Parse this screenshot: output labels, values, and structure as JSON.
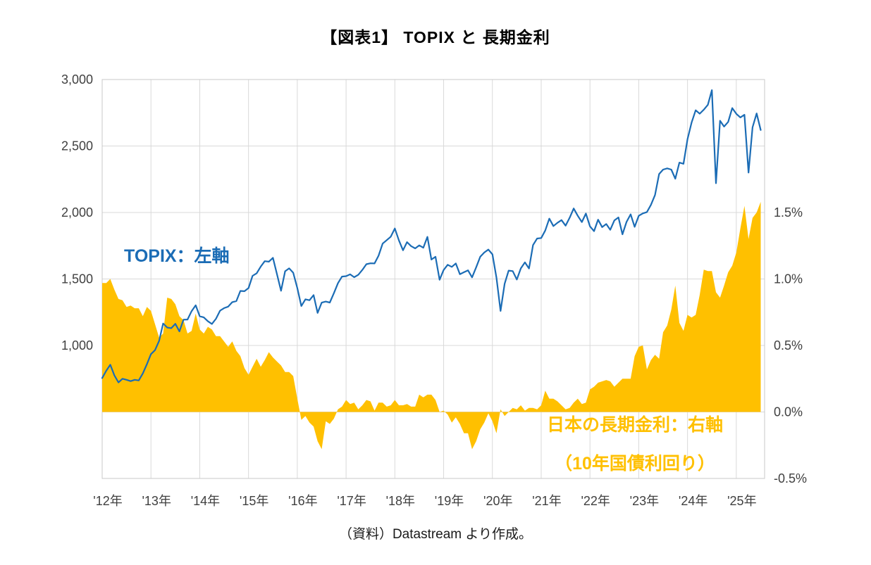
{
  "title": "【図表1】 TOPIX と 長期金利",
  "source": "（資料）Datastream より作成。",
  "annotations": {
    "topix": "TOPIX：左軸",
    "yield_line1": "日本の長期金利：右軸",
    "yield_line2": "（10年国債利回り）"
  },
  "colors": {
    "topix_line": "#1b6cb5",
    "yield_area": "#FFC000",
    "grid": "#D9D9D9",
    "border": "#C8C8C8",
    "axis_text": "#404040"
  },
  "chart_data": {
    "type": "line+area",
    "title": "【図表1】 TOPIX と 長期金利",
    "x_start": 2012.0,
    "points_per_year": 12,
    "x_range": [
      2012.0,
      2025.58
    ],
    "x_tick_years": [
      2012,
      2013,
      2014,
      2015,
      2016,
      2017,
      2018,
      2019,
      2020,
      2021,
      2022,
      2023,
      2024,
      2025
    ],
    "x_tick_labels": [
      "'12年",
      "'13年",
      "'14年",
      "'15年",
      "'16年",
      "'17年",
      "'18年",
      "'19年",
      "'20年",
      "'21年",
      "'22年",
      "'23年",
      "'24年",
      "'25年"
    ],
    "left_axis": {
      "series": "TOPIX",
      "range": [
        0,
        3000
      ],
      "ticks": [
        1000,
        1500,
        2000,
        2500,
        3000
      ],
      "tick_labels": [
        "1,000",
        "1,500",
        "2,000",
        "2,500",
        "3,000"
      ]
    },
    "right_axis": {
      "series": "日本の長期金利（10年国債利回り）",
      "range": [
        -0.5,
        2.5
      ],
      "ticks": [
        -0.5,
        0.0,
        0.5,
        1.0,
        1.5
      ],
      "tick_labels": [
        "-0.5%",
        "0.0%",
        "0.5%",
        "1.0%",
        "1.5%"
      ]
    },
    "gridlines_left": [
      500,
      1000,
      1500,
      2000,
      2500
    ],
    "series": [
      {
        "name": "TOPIX",
        "axis": "left",
        "type": "line",
        "values": [
          755,
          810,
          855,
          775,
          722,
          750,
          742,
          732,
          742,
          737,
          790,
          860,
          935,
          965,
          1035,
          1165,
          1135,
          1130,
          1163,
          1106,
          1194,
          1195,
          1258,
          1302,
          1220,
          1211,
          1182,
          1162,
          1201,
          1262,
          1281,
          1292,
          1326,
          1334,
          1410,
          1408,
          1432,
          1524,
          1543,
          1593,
          1634,
          1630,
          1659,
          1537,
          1411,
          1558,
          1580,
          1547,
          1432,
          1297,
          1347,
          1340,
          1379,
          1245,
          1322,
          1330,
          1323,
          1393,
          1469,
          1518,
          1521,
          1535,
          1513,
          1531,
          1568,
          1611,
          1618,
          1617,
          1675,
          1766,
          1792,
          1818,
          1880,
          1790,
          1716,
          1777,
          1747,
          1730,
          1753,
          1735,
          1817,
          1646,
          1667,
          1494,
          1567,
          1607,
          1591,
          1617,
          1536,
          1551,
          1565,
          1512,
          1588,
          1667,
          1699,
          1721,
          1685,
          1510,
          1260,
          1464,
          1563,
          1559,
          1496,
          1580,
          1625,
          1579,
          1755,
          1804,
          1808,
          1864,
          1954,
          1898,
          1922,
          1943,
          1901,
          1961,
          2030,
          1975,
          1928,
          1992,
          1896,
          1860,
          1946,
          1890,
          1913,
          1870,
          1940,
          1963,
          1836,
          1929,
          1986,
          1892,
          1975,
          1993,
          2003,
          2057,
          2131,
          2289,
          2323,
          2332,
          2323,
          2254,
          2375,
          2366,
          2551,
          2676,
          2769,
          2743,
          2773,
          2810,
          2920,
          2220,
          2690,
          2646,
          2681,
          2785,
          2742,
          2715,
          2735,
          2300,
          2640,
          2745,
          2620
        ]
      },
      {
        "name": "日本の長期金利（10年国債利回り）",
        "axis": "right",
        "type": "area",
        "values": [
          0.97,
          0.97,
          1.0,
          0.92,
          0.85,
          0.84,
          0.79,
          0.8,
          0.78,
          0.78,
          0.72,
          0.79,
          0.76,
          0.66,
          0.56,
          0.59,
          0.86,
          0.85,
          0.81,
          0.72,
          0.69,
          0.59,
          0.61,
          0.74,
          0.62,
          0.59,
          0.64,
          0.62,
          0.57,
          0.57,
          0.53,
          0.49,
          0.53,
          0.46,
          0.42,
          0.33,
          0.28,
          0.34,
          0.4,
          0.34,
          0.39,
          0.45,
          0.41,
          0.38,
          0.35,
          0.3,
          0.3,
          0.27,
          0.1,
          -0.06,
          -0.03,
          -0.08,
          -0.11,
          -0.22,
          -0.28,
          -0.07,
          -0.09,
          -0.05,
          0.02,
          0.04,
          0.09,
          0.06,
          0.07,
          0.02,
          0.05,
          0.09,
          0.08,
          0.01,
          0.07,
          0.07,
          0.04,
          0.05,
          0.09,
          0.05,
          0.05,
          0.06,
          0.04,
          0.04,
          0.13,
          0.11,
          0.13,
          0.13,
          0.09,
          0.0,
          0.01,
          -0.02,
          -0.08,
          -0.04,
          -0.09,
          -0.16,
          -0.16,
          -0.28,
          -0.22,
          -0.13,
          -0.08,
          -0.01,
          -0.07,
          -0.16,
          0.02,
          -0.03,
          0.0,
          0.03,
          0.02,
          0.05,
          0.01,
          0.03,
          0.03,
          0.02,
          0.05,
          0.16,
          0.1,
          0.1,
          0.08,
          0.05,
          0.02,
          0.03,
          0.07,
          0.1,
          0.06,
          0.07,
          0.17,
          0.19,
          0.22,
          0.23,
          0.24,
          0.23,
          0.19,
          0.22,
          0.25,
          0.25,
          0.25,
          0.42,
          0.49,
          0.5,
          0.32,
          0.39,
          0.43,
          0.4,
          0.6,
          0.65,
          0.77,
          0.95,
          0.67,
          0.61,
          0.73,
          0.71,
          0.73,
          0.88,
          1.07,
          1.06,
          1.06,
          0.9,
          0.86,
          0.95,
          1.05,
          1.1,
          1.2,
          1.38,
          1.55,
          1.3,
          1.46,
          1.5,
          1.58
        ]
      }
    ]
  }
}
